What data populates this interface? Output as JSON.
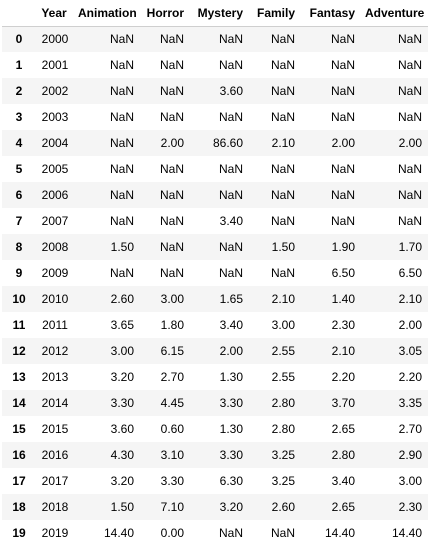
{
  "columns": [
    "",
    "Year",
    "Animation",
    "Horror",
    "Mystery",
    "Family",
    "Fantasy",
    "Adventure"
  ],
  "rows": [
    [
      "0",
      "2000",
      "NaN",
      "NaN",
      "NaN",
      "NaN",
      "NaN",
      "NaN"
    ],
    [
      "1",
      "2001",
      "NaN",
      "NaN",
      "NaN",
      "NaN",
      "NaN",
      "NaN"
    ],
    [
      "2",
      "2002",
      "NaN",
      "NaN",
      "3.60",
      "NaN",
      "NaN",
      "NaN"
    ],
    [
      "3",
      "2003",
      "NaN",
      "NaN",
      "NaN",
      "NaN",
      "NaN",
      "NaN"
    ],
    [
      "4",
      "2004",
      "NaN",
      "2.00",
      "86.60",
      "2.10",
      "2.00",
      "2.00"
    ],
    [
      "5",
      "2005",
      "NaN",
      "NaN",
      "NaN",
      "NaN",
      "NaN",
      "NaN"
    ],
    [
      "6",
      "2006",
      "NaN",
      "NaN",
      "NaN",
      "NaN",
      "NaN",
      "NaN"
    ],
    [
      "7",
      "2007",
      "NaN",
      "NaN",
      "3.40",
      "NaN",
      "NaN",
      "NaN"
    ],
    [
      "8",
      "2008",
      "1.50",
      "NaN",
      "NaN",
      "1.50",
      "1.90",
      "1.70"
    ],
    [
      "9",
      "2009",
      "NaN",
      "NaN",
      "NaN",
      "NaN",
      "6.50",
      "6.50"
    ],
    [
      "10",
      "2010",
      "2.60",
      "3.00",
      "1.65",
      "2.10",
      "1.40",
      "2.10"
    ],
    [
      "11",
      "2011",
      "3.65",
      "1.80",
      "3.40",
      "3.00",
      "2.30",
      "2.00"
    ],
    [
      "12",
      "2012",
      "3.00",
      "6.15",
      "2.00",
      "2.55",
      "2.10",
      "3.05"
    ],
    [
      "13",
      "2013",
      "3.20",
      "2.70",
      "1.30",
      "2.55",
      "2.20",
      "2.20"
    ],
    [
      "14",
      "2014",
      "3.30",
      "4.45",
      "3.30",
      "2.80",
      "3.70",
      "3.35"
    ],
    [
      "15",
      "2015",
      "3.60",
      "0.60",
      "1.30",
      "2.80",
      "2.65",
      "2.70"
    ],
    [
      "16",
      "2016",
      "4.30",
      "3.10",
      "3.30",
      "3.25",
      "2.80",
      "2.90"
    ],
    [
      "17",
      "2017",
      "3.20",
      "3.30",
      "6.30",
      "3.25",
      "3.40",
      "3.00"
    ],
    [
      "18",
      "2018",
      "1.50",
      "7.10",
      "3.20",
      "2.60",
      "2.65",
      "2.30"
    ],
    [
      "19",
      "2019",
      "14.40",
      "0.00",
      "NaN",
      "NaN",
      "14.40",
      "14.40"
    ]
  ]
}
